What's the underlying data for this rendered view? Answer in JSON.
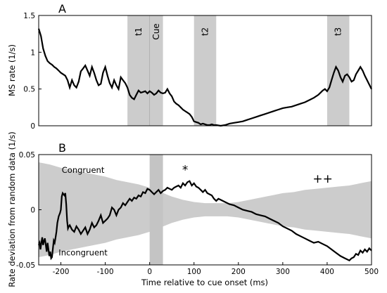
{
  "chart_data": [
    {
      "type": "line",
      "panel_label": "A",
      "ylabel": "MS rate (1/s)",
      "xlim": [
        -250,
        500
      ],
      "ylim": [
        0,
        1.5
      ],
      "yticks": [
        0,
        0.5,
        1,
        1.5
      ],
      "yticklabels": [
        "0",
        "0.5",
        "1",
        "1.5"
      ],
      "shaded_windows": [
        {
          "label": "t1",
          "range": [
            -50,
            0
          ]
        },
        {
          "label": "Cue",
          "range": [
            0,
            30
          ]
        },
        {
          "label": "t2",
          "range": [
            100,
            150
          ]
        },
        {
          "label": "t3",
          "range": [
            400,
            450
          ]
        }
      ],
      "series": [
        {
          "x": [
            -250,
            -245,
            -240,
            -235,
            -230,
            -225,
            -220,
            -215,
            -210,
            -205,
            -200,
            -195,
            -190,
            -185,
            -180,
            -175,
            -170,
            -165,
            -160,
            -155,
            -150,
            -145,
            -140,
            -135,
            -130,
            -125,
            -120,
            -115,
            -110,
            -105,
            -100,
            -95,
            -90,
            -85,
            -80,
            -75,
            -70,
            -65,
            -60,
            -55,
            -50,
            -45,
            -40,
            -35,
            -30,
            -25,
            -20,
            -15,
            -10,
            -5,
            0,
            5,
            10,
            15,
            20,
            25,
            30,
            35,
            40,
            45,
            50,
            55,
            60,
            65,
            70,
            75,
            80,
            85,
            90,
            95,
            100,
            105,
            110,
            115,
            120,
            125,
            130,
            135,
            140,
            145,
            150,
            160,
            170,
            180,
            190,
            200,
            210,
            220,
            230,
            240,
            250,
            260,
            270,
            280,
            290,
            300,
            310,
            320,
            330,
            340,
            350,
            360,
            370,
            380,
            385,
            390,
            395,
            400,
            405,
            410,
            415,
            420,
            425,
            430,
            435,
            440,
            445,
            450,
            455,
            460,
            465,
            470,
            475,
            480,
            485,
            490,
            495,
            500
          ],
          "y": [
            1.32,
            1.22,
            1.05,
            0.95,
            0.88,
            0.85,
            0.83,
            0.8,
            0.78,
            0.75,
            0.72,
            0.7,
            0.68,
            0.62,
            0.52,
            0.62,
            0.55,
            0.52,
            0.6,
            0.74,
            0.78,
            0.82,
            0.75,
            0.68,
            0.8,
            0.72,
            0.62,
            0.55,
            0.57,
            0.72,
            0.8,
            0.68,
            0.58,
            0.52,
            0.62,
            0.55,
            0.5,
            0.66,
            0.62,
            0.58,
            0.52,
            0.42,
            0.38,
            0.36,
            0.42,
            0.48,
            0.45,
            0.46,
            0.47,
            0.44,
            0.47,
            0.45,
            0.42,
            0.44,
            0.48,
            0.45,
            0.44,
            0.45,
            0.5,
            0.44,
            0.4,
            0.33,
            0.3,
            0.28,
            0.25,
            0.22,
            0.2,
            0.18,
            0.16,
            0.12,
            0.06,
            0.05,
            0.04,
            0.02,
            0.03,
            0.02,
            0.01,
            0.01,
            0.02,
            0.01,
            0.01,
            0.0,
            0.01,
            0.03,
            0.04,
            0.05,
            0.06,
            0.08,
            0.1,
            0.12,
            0.14,
            0.16,
            0.18,
            0.2,
            0.22,
            0.24,
            0.25,
            0.26,
            0.28,
            0.3,
            0.32,
            0.35,
            0.38,
            0.42,
            0.45,
            0.48,
            0.5,
            0.47,
            0.52,
            0.62,
            0.72,
            0.8,
            0.75,
            0.66,
            0.6,
            0.68,
            0.7,
            0.66,
            0.6,
            0.62,
            0.7,
            0.75,
            0.8,
            0.75,
            0.68,
            0.62,
            0.56,
            0.5
          ]
        }
      ]
    },
    {
      "type": "line",
      "panel_label": "B",
      "xlabel": "Time relative to cue onset (ms)",
      "ylabel": "Rate deviation from random data (1/s)",
      "xlim": [
        -250,
        500
      ],
      "ylim": [
        -0.05,
        0.05
      ],
      "xticks": [
        -200,
        -100,
        0,
        100,
        200,
        300,
        400,
        500
      ],
      "xticklabels": [
        "-200",
        "-100",
        "0",
        "100",
        "200",
        "300",
        "400",
        "500"
      ],
      "yticks": [
        -0.05,
        0,
        0.05
      ],
      "yticklabels": [
        "-0.05",
        "0",
        "0.05"
      ],
      "shaded_windows": [
        {
          "label": "",
          "range": [
            0,
            30
          ]
        }
      ],
      "annotations": [
        {
          "text": "Congruent",
          "x": -150,
          "y": 0.036
        },
        {
          "text": "Incongruent",
          "x": -150,
          "y": -0.039
        },
        {
          "text": "*",
          "x": 80,
          "y": 0.035
        },
        {
          "text": "++",
          "x": 390,
          "y": 0.027
        }
      ],
      "confidence_band": {
        "x": [
          -250,
          -225,
          -200,
          -175,
          -150,
          -125,
          -100,
          -75,
          -50,
          -25,
          0,
          25,
          50,
          75,
          100,
          125,
          150,
          175,
          200,
          225,
          250,
          275,
          300,
          325,
          350,
          375,
          400,
          425,
          450,
          475,
          500
        ],
        "upper": [
          0.043,
          0.041,
          0.038,
          0.036,
          0.034,
          0.032,
          0.03,
          0.027,
          0.025,
          0.023,
          0.02,
          0.016,
          0.012,
          0.009,
          0.007,
          0.006,
          0.006,
          0.006,
          0.007,
          0.009,
          0.011,
          0.013,
          0.015,
          0.016,
          0.018,
          0.019,
          0.02,
          0.021,
          0.022,
          0.024,
          0.026
        ],
        "lower": [
          -0.043,
          -0.041,
          -0.038,
          -0.036,
          -0.034,
          -0.032,
          -0.03,
          -0.027,
          -0.025,
          -0.023,
          -0.02,
          -0.016,
          -0.012,
          -0.009,
          -0.007,
          -0.006,
          -0.006,
          -0.006,
          -0.007,
          -0.009,
          -0.011,
          -0.013,
          -0.015,
          -0.016,
          -0.018,
          -0.019,
          -0.02,
          -0.021,
          -0.022,
          -0.024,
          -0.026
        ]
      },
      "series": [
        {
          "x": [
            -250,
            -248,
            -246,
            -244,
            -242,
            -240,
            -238,
            -236,
            -234,
            -232,
            -230,
            -228,
            -226,
            -224,
            -222,
            -220,
            -218,
            -216,
            -214,
            -212,
            -210,
            -208,
            -205,
            -202,
            -200,
            -198,
            -196,
            -194,
            -192,
            -190,
            -188,
            -186,
            -184,
            -182,
            -180,
            -175,
            -170,
            -165,
            -160,
            -155,
            -150,
            -145,
            -140,
            -135,
            -130,
            -125,
            -120,
            -115,
            -110,
            -105,
            -100,
            -95,
            -90,
            -85,
            -80,
            -75,
            -70,
            -65,
            -60,
            -55,
            -50,
            -45,
            -40,
            -35,
            -30,
            -25,
            -20,
            -15,
            -10,
            -5,
            0,
            5,
            10,
            15,
            20,
            25,
            30,
            35,
            40,
            45,
            50,
            55,
            60,
            65,
            70,
            75,
            80,
            85,
            90,
            95,
            100,
            105,
            110,
            115,
            120,
            125,
            130,
            135,
            140,
            145,
            150,
            155,
            160,
            170,
            180,
            190,
            200,
            210,
            220,
            230,
            240,
            250,
            260,
            270,
            280,
            290,
            300,
            310,
            320,
            330,
            340,
            350,
            360,
            370,
            380,
            390,
            400,
            410,
            420,
            430,
            440,
            450,
            455,
            460,
            465,
            470,
            475,
            480,
            485,
            490,
            495,
            500
          ],
          "y": [
            -0.032,
            -0.03,
            -0.036,
            -0.03,
            -0.025,
            -0.032,
            -0.028,
            -0.026,
            -0.032,
            -0.038,
            -0.03,
            -0.036,
            -0.042,
            -0.038,
            -0.044,
            -0.043,
            -0.035,
            -0.028,
            -0.03,
            -0.025,
            -0.02,
            -0.012,
            -0.006,
            -0.003,
            0.0,
            0.012,
            0.015,
            0.014,
            0.013,
            0.015,
            0.005,
            -0.01,
            -0.017,
            -0.015,
            -0.014,
            -0.018,
            -0.02,
            -0.015,
            -0.018,
            -0.022,
            -0.019,
            -0.016,
            -0.022,
            -0.018,
            -0.012,
            -0.016,
            -0.014,
            -0.01,
            -0.005,
            -0.012,
            -0.01,
            -0.008,
            -0.005,
            0.002,
            0.0,
            -0.005,
            0.0,
            0.002,
            0.006,
            0.004,
            0.007,
            0.01,
            0.008,
            0.011,
            0.01,
            0.013,
            0.012,
            0.016,
            0.015,
            0.019,
            0.018,
            0.016,
            0.014,
            0.016,
            0.018,
            0.015,
            0.017,
            0.018,
            0.02,
            0.019,
            0.018,
            0.02,
            0.021,
            0.022,
            0.02,
            0.024,
            0.022,
            0.025,
            0.026,
            0.022,
            0.024,
            0.021,
            0.02,
            0.018,
            0.016,
            0.018,
            0.015,
            0.014,
            0.013,
            0.01,
            0.008,
            0.01,
            0.009,
            0.007,
            0.005,
            0.004,
            0.002,
            0.0,
            -0.001,
            -0.002,
            -0.004,
            -0.005,
            -0.006,
            -0.008,
            -0.01,
            -0.012,
            -0.015,
            -0.017,
            -0.019,
            -0.022,
            -0.024,
            -0.026,
            -0.028,
            -0.03,
            -0.029,
            -0.031,
            -0.033,
            -0.036,
            -0.039,
            -0.042,
            -0.044,
            -0.046,
            -0.044,
            -0.043,
            -0.04,
            -0.041,
            -0.037,
            -0.039,
            -0.036,
            -0.038,
            -0.035,
            -0.037
          ]
        }
      ]
    }
  ]
}
